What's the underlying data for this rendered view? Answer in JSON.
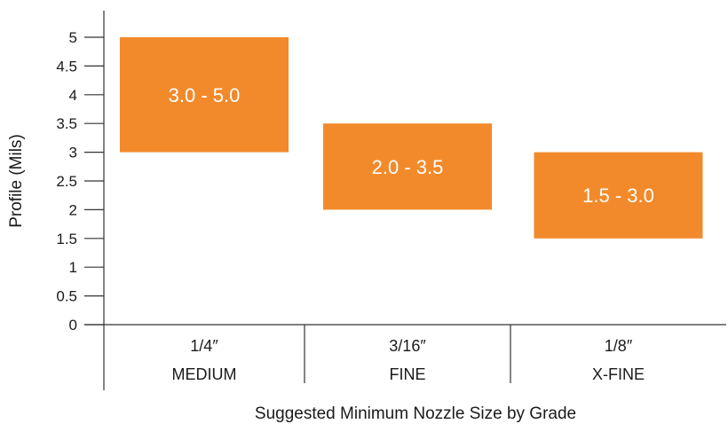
{
  "chart_data": {
    "type": "bar",
    "subtype": "floating-range",
    "categories": [
      {
        "size": "1/4″",
        "grade": "MEDIUM"
      },
      {
        "size": "3/16″",
        "grade": "FINE"
      },
      {
        "size": "1/8″",
        "grade": "X-FINE"
      }
    ],
    "ranges": [
      {
        "low": 3.0,
        "high": 5.0,
        "label": "3.0 - 5.0"
      },
      {
        "low": 2.0,
        "high": 3.5,
        "label": "2.0 - 3.5"
      },
      {
        "low": 1.5,
        "high": 3.0,
        "label": "1.5 - 3.0"
      }
    ],
    "yticks": [
      "0",
      "0.5",
      "1",
      "1.5",
      "2",
      "2.5",
      "3",
      "3.5",
      "4",
      "4.5",
      "5"
    ],
    "ylim": [
      0,
      5
    ],
    "ylabel": "Profile (Mils)",
    "xlabel": "Suggested Minimum Nozzle Size by Grade",
    "grid": false,
    "bar_color": "#f28a2b",
    "axis_color": "#333333"
  }
}
